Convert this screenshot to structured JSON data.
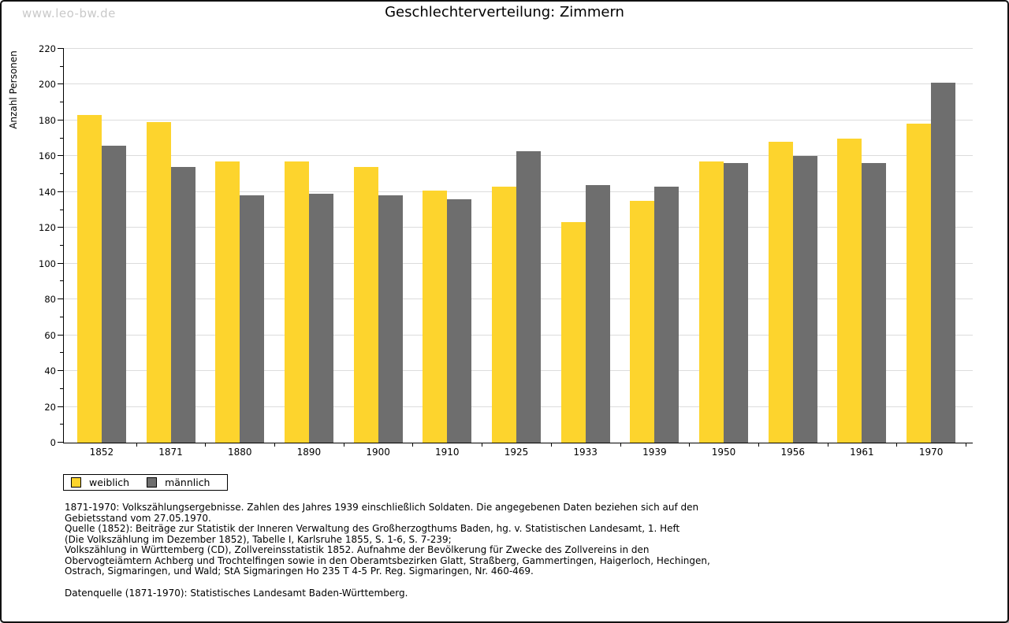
{
  "watermark": "www.leo-bw.de",
  "header": {
    "title": "Geschlechterverteilung: Zimmern"
  },
  "chart_data": {
    "type": "bar",
    "title": "Geschlechterverteilung: Zimmern",
    "xlabel": "",
    "ylabel": "Anzahl Personen",
    "ylim": [
      0,
      220
    ],
    "ytick_major_step": 20,
    "ytick_minor_step": 10,
    "grid": true,
    "gridline_color": "#dcdcdc",
    "legend_position": "bottom-left",
    "categories": [
      "1852",
      "1871",
      "1880",
      "1890",
      "1900",
      "1910",
      "1925",
      "1933",
      "1939",
      "1950",
      "1956",
      "1961",
      "1970"
    ],
    "series": [
      {
        "name": "weiblich",
        "color": "#fdd42d",
        "values": [
          183,
          179,
          157,
          157,
          154,
          141,
          143,
          123,
          135,
          157,
          168,
          170,
          178
        ]
      },
      {
        "name": "männlich",
        "color": "#6e6e6e",
        "values": [
          166,
          154,
          138,
          139,
          138,
          136,
          163,
          144,
          143,
          156,
          160,
          156,
          201
        ]
      }
    ]
  },
  "legend": {
    "items": [
      {
        "label": "weiblich",
        "color": "#fdd42d"
      },
      {
        "label": "männlich",
        "color": "#6e6e6e"
      }
    ]
  },
  "footnotes": {
    "lines": [
      "1871-1970: Volkszählungsergebnisse. Zahlen des Jahres 1939 einschließlich Soldaten. Die angegebenen Daten beziehen sich auf den",
      "Gebietsstand vom 27.05.1970.",
      "Quelle (1852): Beiträge zur Statistik der Inneren Verwaltung des Großherzogthums Baden, hg. v. Statistischen Landesamt, 1. Heft",
      "(Die Volkszählung im Dezember 1852), Tabelle I, Karlsruhe 1855, S. 1-6, S. 7-239;",
      "Volkszählung in Württemberg (CD), Zollvereinsstatistik 1852. Aufnahme der Bevölkerung für Zwecke des Zollvereins in den",
      "Obervogteiämtern Achberg und Trochtelfingen sowie in den Oberamtsbezirken Glatt, Straßberg, Gammertingen, Haigerloch, Hechingen,",
      "Ostrach, Sigmaringen, und Wald; StA Sigmaringen Ho 235 T 4-5 Pr. Reg. Sigmaringen, Nr. 460-469."
    ],
    "datasource": "Datenquelle (1871-1970): Statistisches Landesamt Baden-Württemberg."
  },
  "colors": {
    "weiblich": "#fdd42d",
    "männlich": "#6e6e6e",
    "gridline": "#dcdcdc",
    "axis": "#000000",
    "watermark": "#c9c9c9",
    "frame": "#111111"
  }
}
